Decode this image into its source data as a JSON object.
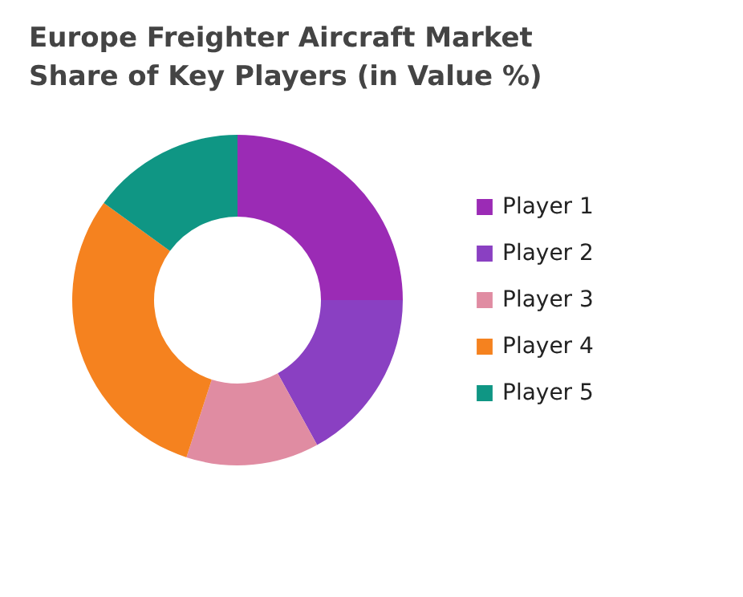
{
  "chart_data": {
    "type": "donut",
    "title": "Europe Freighter Aircraft Market Share of Key Players (in Value %)",
    "categories": [
      "Player 1",
      "Player 2",
      "Player 3",
      "Player 4",
      "Player 5"
    ],
    "values": [
      25,
      17,
      13,
      30,
      15
    ],
    "colors": [
      "#9b2bb5",
      "#8a40c2",
      "#e08ca2",
      "#f5821f",
      "#0f9684"
    ],
    "legend": "right"
  }
}
